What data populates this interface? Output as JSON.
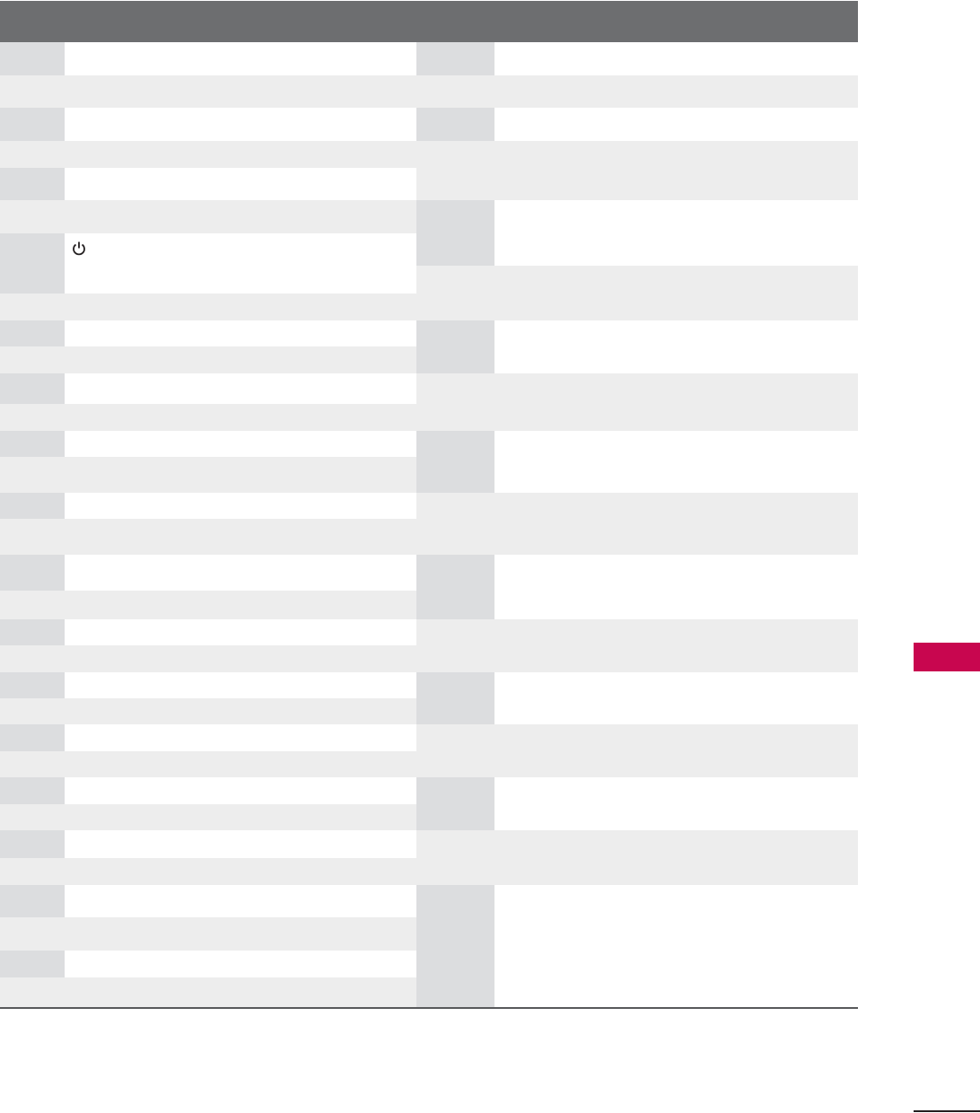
{
  "colors": {
    "header": "#6d6e70",
    "label_cell": "#dcdddf",
    "row_band": "#ededed",
    "content_cell": "#ffffff",
    "side_tab_accent": "#c8064f"
  },
  "table": {
    "header_text": "",
    "icons": [
      "power-icon"
    ]
  }
}
